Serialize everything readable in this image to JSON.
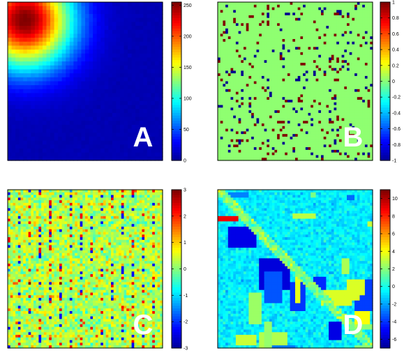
{
  "colormap": [
    "#00008f",
    "#0000ff",
    "#0080ff",
    "#00ffff",
    "#80ff80",
    "#ffff00",
    "#ff8000",
    "#ff0000",
    "#800000"
  ],
  "chart_data": [
    {
      "type": "heatmap",
      "panel_label": "A",
      "pattern": "radial",
      "peak": [
        0.1,
        0.1
      ],
      "clim": [
        0,
        255
      ],
      "colorbar_ticks": [
        "0",
        "50",
        "100",
        "150",
        "200",
        "250"
      ],
      "colorbar_tick_values": [
        0,
        50,
        100,
        150,
        200,
        250
      ]
    },
    {
      "type": "heatmap",
      "panel_label": "B",
      "pattern": "sparse-binary",
      "background_value": 0.03,
      "clim": [
        -1,
        1
      ],
      "colorbar_ticks": [
        "-1",
        "-0.8",
        "-0.6",
        "-0.4",
        "-0.2",
        "0",
        "0.2",
        "0.4",
        "0.6",
        "0.8",
        "1"
      ],
      "colorbar_tick_values": [
        -1,
        -0.8,
        -0.6,
        -0.4,
        -0.2,
        0,
        0.2,
        0.4,
        0.6,
        0.8,
        1
      ]
    },
    {
      "type": "heatmap",
      "panel_label": "C",
      "pattern": "noisy-grid",
      "clim": [
        -3,
        3
      ],
      "colorbar_ticks": [
        "-3",
        "-2",
        "-1",
        "0",
        "1",
        "2",
        "3"
      ],
      "colorbar_tick_values": [
        -3,
        -2,
        -1,
        0,
        1,
        2,
        3
      ]
    },
    {
      "type": "heatmap",
      "panel_label": "D",
      "pattern": "blocky",
      "clim": [
        -7,
        11
      ],
      "colorbar_ticks": [
        "-6",
        "-4",
        "-2",
        "0",
        "2",
        "4",
        "6",
        "8",
        "10"
      ],
      "colorbar_tick_values": [
        -6,
        -4,
        -2,
        0,
        2,
        4,
        6,
        8,
        10
      ]
    }
  ]
}
